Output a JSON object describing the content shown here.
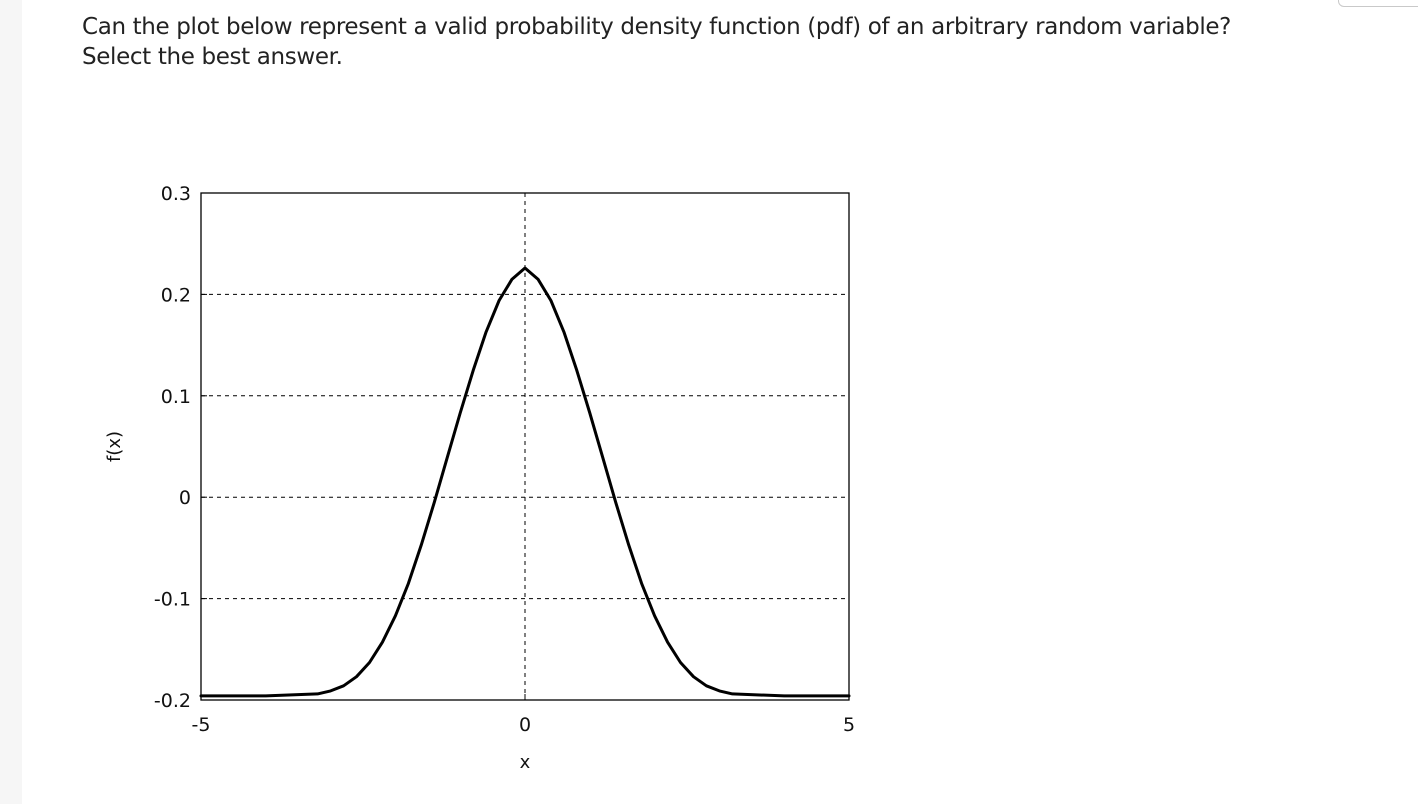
{
  "question": {
    "line1": "Can the plot below represent a valid probability density function (pdf) of an arbitrary random variable?",
    "line2": "Select the best answer."
  },
  "chart_data": {
    "type": "line",
    "title": "",
    "xlabel": "x",
    "ylabel": "f(x)",
    "xlim": [
      -5,
      5
    ],
    "ylim": [
      -0.2,
      0.3
    ],
    "x_ticks": [
      -5,
      0,
      5
    ],
    "x_tick_labels": [
      "-5",
      "0",
      "5"
    ],
    "y_ticks": [
      -0.2,
      -0.1,
      0,
      0.1,
      0.2,
      0.3
    ],
    "y_tick_labels": [
      "-0.2",
      "-0.1",
      "0",
      "0.1",
      "0.2",
      "0.3"
    ],
    "grid": true,
    "legend": "none",
    "line_color": "#000000",
    "series": [
      {
        "x": [
          -5,
          -4,
          -3.2,
          -3,
          -2.8,
          -2.6,
          -2.4,
          -2.2,
          -2,
          -1.8,
          -1.6,
          -1.4,
          -1.2,
          -1,
          -0.8,
          -0.6,
          -0.4,
          -0.2,
          0,
          0.2,
          0.4,
          0.6,
          0.8,
          1,
          1.2,
          1.4,
          1.6,
          1.8,
          2,
          2.2,
          2.4,
          2.6,
          2.8,
          3,
          3.2,
          4,
          5
        ],
        "y": [
          -0.196,
          -0.196,
          -0.194,
          -0.191,
          -0.186,
          -0.177,
          -0.163,
          -0.143,
          -0.117,
          -0.085,
          -0.047,
          -0.005,
          0.039,
          0.083,
          0.125,
          0.163,
          0.194,
          0.215,
          0.226,
          0.215,
          0.194,
          0.163,
          0.125,
          0.083,
          0.039,
          -0.005,
          -0.047,
          -0.085,
          -0.117,
          -0.143,
          -0.163,
          -0.177,
          -0.186,
          -0.191,
          -0.194,
          -0.196,
          -0.196
        ]
      }
    ]
  }
}
